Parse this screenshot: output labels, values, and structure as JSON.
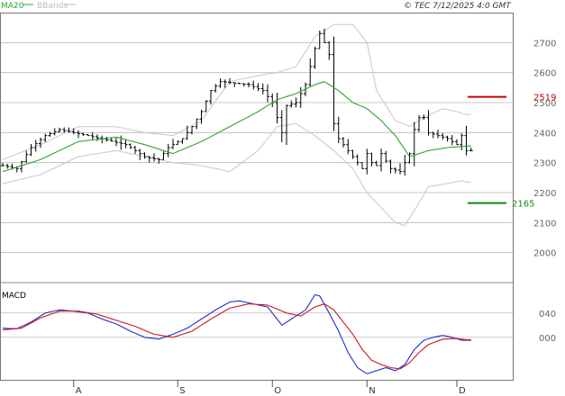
{
  "header": {
    "legend": [
      {
        "label": "MA20",
        "color": "#2fa52f"
      },
      {
        "label": "BBands",
        "color": "#bdbdbd"
      }
    ],
    "copyright": "© TEC 7/12/2025 4:0 GMT"
  },
  "colors": {
    "grid": "#b9b9b9",
    "price": "#000000",
    "ma": "#2fa52f",
    "band": "#c8c8c8",
    "resistance": "#cc0000",
    "support": "#118811",
    "macd": "#1f2fd2",
    "signal": "#cc1b1b"
  },
  "chart_data": [
    {
      "type": "ohlc",
      "ylim": [
        1900,
        2800
      ],
      "y_ticks": [
        2000,
        2100,
        2200,
        2300,
        2400,
        2500,
        2600,
        2700
      ],
      "y_tick_labels": [
        "2000",
        "2100",
        "2200",
        "2300",
        "2400",
        "2500",
        "2600",
        "2700"
      ],
      "x_tick_labels": [
        "A",
        "S",
        "O",
        "N",
        "D"
      ],
      "x_tick_index": [
        15,
        37,
        57,
        77,
        96
      ],
      "n_bars": 100,
      "levels": [
        {
          "name": "resistance",
          "value": 2519,
          "label": "2519"
        },
        {
          "name": "support",
          "value": 2165,
          "label": "2165"
        }
      ],
      "close_anchors": [
        [
          0,
          2290
        ],
        [
          3,
          2280
        ],
        [
          6,
          2350
        ],
        [
          9,
          2390
        ],
        [
          12,
          2410
        ],
        [
          15,
          2400
        ],
        [
          18,
          2390
        ],
        [
          22,
          2375
        ],
        [
          26,
          2360
        ],
        [
          30,
          2320
        ],
        [
          33,
          2310
        ],
        [
          35,
          2350
        ],
        [
          38,
          2380
        ],
        [
          40,
          2420
        ],
        [
          42,
          2470
        ],
        [
          44,
          2540
        ],
        [
          46,
          2570
        ],
        [
          49,
          2565
        ],
        [
          52,
          2560
        ],
        [
          55,
          2540
        ],
        [
          57,
          2500
        ],
        [
          59,
          2400
        ],
        [
          60,
          2490
        ],
        [
          62,
          2500
        ],
        [
          64,
          2560
        ],
        [
          66,
          2680
        ],
        [
          67,
          2730
        ],
        [
          68,
          2700
        ],
        [
          69,
          2660
        ],
        [
          70,
          2430
        ],
        [
          71,
          2380
        ],
        [
          73,
          2340
        ],
        [
          75,
          2300
        ],
        [
          76,
          2280
        ],
        [
          77,
          2330
        ],
        [
          78,
          2300
        ],
        [
          79,
          2290
        ],
        [
          80,
          2330
        ],
        [
          82,
          2280
        ],
        [
          84,
          2270
        ],
        [
          86,
          2330
        ],
        [
          87,
          2410
        ],
        [
          88,
          2450
        ],
        [
          89,
          2450
        ],
        [
          90,
          2400
        ],
        [
          92,
          2390
        ],
        [
          94,
          2380
        ],
        [
          95,
          2370
        ],
        [
          96,
          2360
        ],
        [
          97,
          2390
        ],
        [
          98,
          2340
        ]
      ],
      "ma20_anchors": [
        [
          0,
          2270
        ],
        [
          8,
          2310
        ],
        [
          16,
          2370
        ],
        [
          24,
          2385
        ],
        [
          30,
          2360
        ],
        [
          36,
          2330
        ],
        [
          42,
          2370
        ],
        [
          48,
          2420
        ],
        [
          54,
          2470
        ],
        [
          58,
          2510
        ],
        [
          62,
          2530
        ],
        [
          66,
          2560
        ],
        [
          68,
          2570
        ],
        [
          71,
          2540
        ],
        [
          74,
          2500
        ],
        [
          77,
          2480
        ],
        [
          80,
          2440
        ],
        [
          83,
          2390
        ],
        [
          86,
          2320
        ],
        [
          90,
          2340
        ],
        [
          94,
          2350
        ],
        [
          98,
          2355
        ]
      ],
      "upper_band_anchors": [
        [
          0,
          2310
        ],
        [
          8,
          2360
        ],
        [
          16,
          2420
        ],
        [
          24,
          2420
        ],
        [
          30,
          2400
        ],
        [
          36,
          2390
        ],
        [
          42,
          2440
        ],
        [
          48,
          2570
        ],
        [
          54,
          2590
        ],
        [
          58,
          2600
        ],
        [
          62,
          2620
        ],
        [
          66,
          2720
        ],
        [
          70,
          2760
        ],
        [
          74,
          2760
        ],
        [
          77,
          2700
        ],
        [
          79,
          2540
        ],
        [
          83,
          2440
        ],
        [
          86,
          2420
        ],
        [
          89,
          2450
        ],
        [
          93,
          2480
        ],
        [
          96,
          2470
        ],
        [
          98,
          2460
        ]
      ],
      "lower_band_anchors": [
        [
          0,
          2230
        ],
        [
          8,
          2260
        ],
        [
          16,
          2320
        ],
        [
          24,
          2340
        ],
        [
          30,
          2320
        ],
        [
          36,
          2300
        ],
        [
          42,
          2290
        ],
        [
          48,
          2270
        ],
        [
          54,
          2340
        ],
        [
          58,
          2420
        ],
        [
          62,
          2430
        ],
        [
          66,
          2390
        ],
        [
          70,
          2340
        ],
        [
          74,
          2280
        ],
        [
          77,
          2200
        ],
        [
          80,
          2150
        ],
        [
          83,
          2100
        ],
        [
          85,
          2090
        ],
        [
          87,
          2140
        ],
        [
          90,
          2220
        ],
        [
          94,
          2230
        ],
        [
          97,
          2240
        ],
        [
          98,
          2235
        ]
      ]
    },
    {
      "type": "line",
      "title": "MACD",
      "ylim": [
        -70,
        90
      ],
      "y_ticks": [
        0,
        40
      ],
      "y_tick_labels": [
        "000",
        "040"
      ],
      "series": [
        {
          "key": "macd",
          "anchors": [
            [
              0,
              15
            ],
            [
              3,
              14
            ],
            [
              6,
              25
            ],
            [
              9,
              40
            ],
            [
              12,
              45
            ],
            [
              15,
              43
            ],
            [
              18,
              40
            ],
            [
              21,
              30
            ],
            [
              24,
              22
            ],
            [
              27,
              10
            ],
            [
              30,
              0
            ],
            [
              33,
              -3
            ],
            [
              36,
              5
            ],
            [
              39,
              15
            ],
            [
              42,
              30
            ],
            [
              45,
              45
            ],
            [
              48,
              58
            ],
            [
              50,
              60
            ],
            [
              53,
              55
            ],
            [
              56,
              50
            ],
            [
              59,
              20
            ],
            [
              62,
              35
            ],
            [
              64,
              45
            ],
            [
              66,
              70
            ],
            [
              67,
              68
            ],
            [
              69,
              40
            ],
            [
              71,
              10
            ],
            [
              73,
              -25
            ],
            [
              75,
              -50
            ],
            [
              77,
              -60
            ],
            [
              79,
              -55
            ],
            [
              81,
              -50
            ],
            [
              83,
              -55
            ],
            [
              85,
              -45
            ],
            [
              87,
              -20
            ],
            [
              89,
              -5
            ],
            [
              91,
              0
            ],
            [
              93,
              3
            ],
            [
              95,
              0
            ],
            [
              97,
              -5
            ]
          ]
        },
        {
          "key": "signal",
          "anchors": [
            [
              0,
              12
            ],
            [
              4,
              15
            ],
            [
              8,
              32
            ],
            [
              12,
              43
            ],
            [
              16,
              43
            ],
            [
              20,
              38
            ],
            [
              24,
              28
            ],
            [
              28,
              18
            ],
            [
              32,
              5
            ],
            [
              36,
              0
            ],
            [
              40,
              10
            ],
            [
              44,
              30
            ],
            [
              48,
              48
            ],
            [
              52,
              55
            ],
            [
              56,
              53
            ],
            [
              60,
              40
            ],
            [
              63,
              35
            ],
            [
              66,
              50
            ],
            [
              68,
              55
            ],
            [
              70,
              45
            ],
            [
              72,
              25
            ],
            [
              74,
              5
            ],
            [
              76,
              -20
            ],
            [
              78,
              -38
            ],
            [
              80,
              -45
            ],
            [
              82,
              -50
            ],
            [
              84,
              -52
            ],
            [
              86,
              -42
            ],
            [
              88,
              -25
            ],
            [
              90,
              -12
            ],
            [
              93,
              -3
            ],
            [
              96,
              -2
            ],
            [
              98,
              -4
            ]
          ]
        }
      ]
    }
  ]
}
